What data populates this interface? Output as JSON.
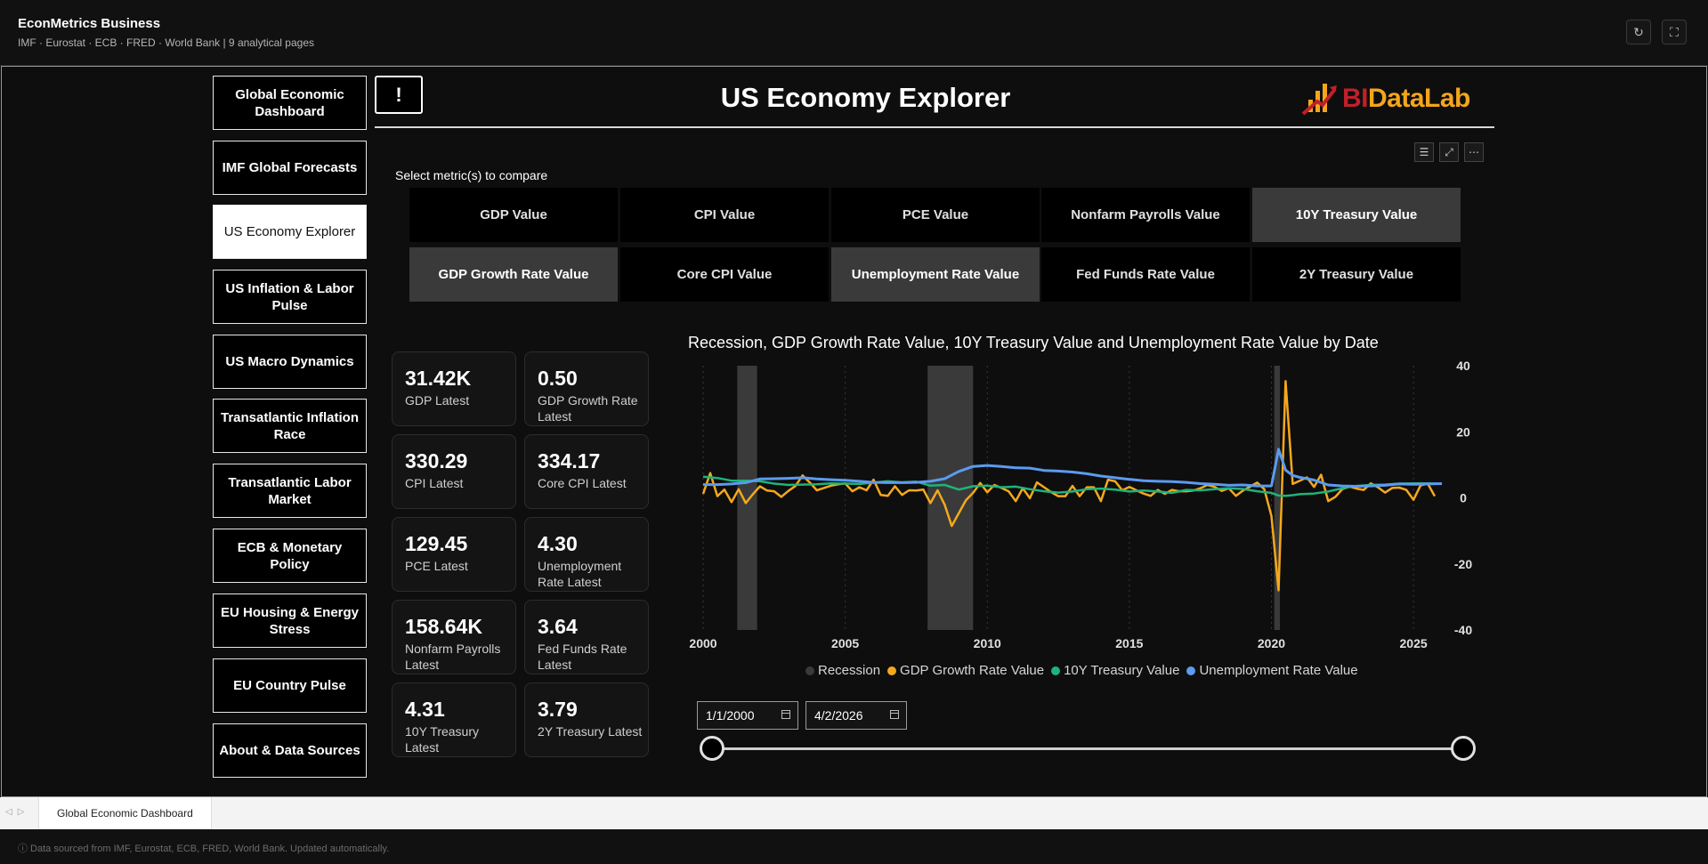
{
  "app": {
    "title": "EconMetrics Business",
    "subtitle": "IMF · Eurostat · ECB · FRED · World Bank  |  9 analytical pages",
    "refresh_icon": "refresh-icon",
    "fullscreen_icon": "fullscreen-icon"
  },
  "nav": {
    "items": [
      {
        "label": "Global Economic Dashboard"
      },
      {
        "label": "IMF Global Forecasts"
      },
      {
        "label": "US Economy Explorer",
        "active": true
      },
      {
        "label": "US Inflation & Labor Pulse"
      },
      {
        "label": "US Macro Dynamics"
      },
      {
        "label": "Transatlantic Inflation Race"
      },
      {
        "label": "Transatlantic Labor Market"
      },
      {
        "label": "ECB & Monetary Policy"
      },
      {
        "label": "EU Housing & Energy Stress"
      },
      {
        "label": "EU Country Pulse"
      },
      {
        "label": "About & Data Sources"
      }
    ]
  },
  "header": {
    "info_button": "!",
    "title": "US Economy Explorer",
    "logo": {
      "part1": "BI",
      "part2": "DataLab",
      "colors": {
        "bi": "#c0202a",
        "datalab": "#f4a51c"
      }
    }
  },
  "slicer": {
    "label": "Select metric(s) to compare",
    "buttons": [
      {
        "label": "GDP Value",
        "selected": false
      },
      {
        "label": "CPI Value",
        "selected": false
      },
      {
        "label": "PCE Value",
        "selected": false
      },
      {
        "label": "Nonfarm Payrolls Value",
        "selected": false
      },
      {
        "label": "10Y Treasury Value",
        "selected": true
      },
      {
        "label": "GDP Growth Rate Value",
        "selected": true
      },
      {
        "label": "Core CPI Value",
        "selected": false
      },
      {
        "label": "Unemployment Rate Value",
        "selected": true
      },
      {
        "label": "Fed Funds Rate Value",
        "selected": false
      },
      {
        "label": "2Y Treasury Value",
        "selected": false
      }
    ]
  },
  "kpis": [
    {
      "value": "31.42K",
      "label": "GDP Latest"
    },
    {
      "value": "0.50",
      "label": "GDP Growth Rate Latest"
    },
    {
      "value": "330.29",
      "label": "CPI Latest"
    },
    {
      "value": "334.17",
      "label": "Core CPI Latest"
    },
    {
      "value": "129.45",
      "label": "PCE Latest"
    },
    {
      "value": "4.30",
      "label": "Unemployment Rate Latest"
    },
    {
      "value": "158.64K",
      "label": "Nonfarm Payrolls Latest"
    },
    {
      "value": "3.64",
      "label": "Fed Funds Rate Latest"
    },
    {
      "value": "4.31",
      "label": "10Y Treasury Latest"
    },
    {
      "value": "3.79",
      "label": "2Y Treasury Latest"
    }
  ],
  "chart_data": {
    "type": "line",
    "title": "Recession, GDP Growth Rate Value, 10Y Treasury Value and Unemployment Rate Value by Date",
    "xlabel": "",
    "ylabel": "",
    "x_ticks": [
      "2000",
      "2005",
      "2010",
      "2015",
      "2020",
      "2025"
    ],
    "y_ticks": [
      "40",
      "20",
      "0",
      "-20",
      "-40"
    ],
    "xlim": [
      2000,
      2026.25
    ],
    "ylim": [
      -40,
      40
    ],
    "y_axis_side": "right",
    "grid": {
      "vertical": true,
      "horizontal": false
    },
    "legend_position": "bottom",
    "recession_periods": [
      [
        2001.2,
        2001.9
      ],
      [
        2007.9,
        2009.5
      ],
      [
        2020.1,
        2020.3
      ]
    ],
    "series": [
      {
        "name": "Recession",
        "color": "#3a3a3a"
      },
      {
        "name": "GDP Growth Rate Value",
        "color": "#f5a81c",
        "points": [
          [
            2000.0,
            1.2
          ],
          [
            2000.25,
            7.5
          ],
          [
            2000.5,
            0.5
          ],
          [
            2000.75,
            2.5
          ],
          [
            2001.0,
            -1.3
          ],
          [
            2001.25,
            2.6
          ],
          [
            2001.5,
            -1.6
          ],
          [
            2001.75,
            1.1
          ],
          [
            2002.0,
            3.5
          ],
          [
            2002.25,
            2.2
          ],
          [
            2002.5,
            2.0
          ],
          [
            2002.75,
            0.3
          ],
          [
            2003.0,
            2.1
          ],
          [
            2003.25,
            3.6
          ],
          [
            2003.5,
            6.8
          ],
          [
            2003.75,
            4.7
          ],
          [
            2004.0,
            2.3
          ],
          [
            2004.25,
            3.0
          ],
          [
            2004.5,
            3.7
          ],
          [
            2004.75,
            4.1
          ],
          [
            2005.0,
            4.4
          ],
          [
            2005.25,
            2.0
          ],
          [
            2005.5,
            3.2
          ],
          [
            2005.75,
            2.3
          ],
          [
            2006.0,
            5.5
          ],
          [
            2006.25,
            0.9
          ],
          [
            2006.5,
            0.6
          ],
          [
            2006.75,
            3.5
          ],
          [
            2007.0,
            0.9
          ],
          [
            2007.25,
            2.3
          ],
          [
            2007.5,
            2.2
          ],
          [
            2007.75,
            2.5
          ],
          [
            2008.0,
            -1.6
          ],
          [
            2008.25,
            2.3
          ],
          [
            2008.5,
            -2.1
          ],
          [
            2008.75,
            -8.5
          ],
          [
            2009.0,
            -4.6
          ],
          [
            2009.25,
            -0.7
          ],
          [
            2009.5,
            1.5
          ],
          [
            2009.75,
            4.5
          ],
          [
            2010.0,
            1.7
          ],
          [
            2010.25,
            3.9
          ],
          [
            2010.5,
            3.0
          ],
          [
            2010.75,
            2.0
          ],
          [
            2011.0,
            -1.0
          ],
          [
            2011.25,
            2.9
          ],
          [
            2011.5,
            -0.1
          ],
          [
            2011.75,
            4.7
          ],
          [
            2012.0,
            3.2
          ],
          [
            2012.25,
            1.7
          ],
          [
            2012.5,
            0.5
          ],
          [
            2012.75,
            0.5
          ],
          [
            2013.0,
            3.6
          ],
          [
            2013.25,
            0.5
          ],
          [
            2013.5,
            3.2
          ],
          [
            2013.75,
            3.2
          ],
          [
            2014.0,
            -1.0
          ],
          [
            2014.25,
            5.5
          ],
          [
            2014.5,
            5.0
          ],
          [
            2014.75,
            2.3
          ],
          [
            2015.0,
            3.3
          ],
          [
            2015.25,
            2.3
          ],
          [
            2015.5,
            1.3
          ],
          [
            2015.75,
            0.6
          ],
          [
            2016.0,
            2.4
          ],
          [
            2016.25,
            1.2
          ],
          [
            2016.5,
            2.4
          ],
          [
            2016.75,
            2.0
          ],
          [
            2017.0,
            2.0
          ],
          [
            2017.25,
            2.2
          ],
          [
            2017.5,
            2.9
          ],
          [
            2017.75,
            3.9
          ],
          [
            2018.0,
            3.3
          ],
          [
            2018.25,
            2.1
          ],
          [
            2018.5,
            2.9
          ],
          [
            2018.75,
            0.6
          ],
          [
            2019.0,
            2.2
          ],
          [
            2019.25,
            3.4
          ],
          [
            2019.5,
            4.6
          ],
          [
            2019.75,
            2.6
          ],
          [
            2020.0,
            -5.5
          ],
          [
            2020.25,
            -28.0
          ],
          [
            2020.5,
            35.3
          ],
          [
            2020.75,
            4.2
          ],
          [
            2021.0,
            5.2
          ],
          [
            2021.25,
            6.2
          ],
          [
            2021.5,
            3.3
          ],
          [
            2021.75,
            7.0
          ],
          [
            2022.0,
            -1.0
          ],
          [
            2022.25,
            0.3
          ],
          [
            2022.5,
            2.7
          ],
          [
            2022.75,
            3.4
          ],
          [
            2023.0,
            2.8
          ],
          [
            2023.25,
            2.4
          ],
          [
            2023.5,
            4.4
          ],
          [
            2023.75,
            3.2
          ],
          [
            2024.0,
            1.6
          ],
          [
            2024.25,
            3.0
          ],
          [
            2024.5,
            3.1
          ],
          [
            2024.75,
            2.4
          ],
          [
            2025.0,
            -0.6
          ],
          [
            2025.25,
            3.8
          ],
          [
            2025.5,
            4.3
          ],
          [
            2025.75,
            0.5
          ]
        ]
      },
      {
        "name": "10Y Treasury Value",
        "color": "#1fb37a",
        "points": [
          [
            2000.0,
            6.4
          ],
          [
            2000.5,
            6.0
          ],
          [
            2001.0,
            5.2
          ],
          [
            2001.5,
            5.2
          ],
          [
            2002.0,
            5.0
          ],
          [
            2002.5,
            4.3
          ],
          [
            2003.0,
            3.9
          ],
          [
            2003.5,
            4.0
          ],
          [
            2004.0,
            4.1
          ],
          [
            2004.5,
            4.4
          ],
          [
            2005.0,
            4.3
          ],
          [
            2005.5,
            4.2
          ],
          [
            2006.0,
            4.6
          ],
          [
            2006.5,
            5.0
          ],
          [
            2007.0,
            4.7
          ],
          [
            2007.5,
            4.9
          ],
          [
            2008.0,
            3.7
          ],
          [
            2008.5,
            3.9
          ],
          [
            2009.0,
            2.5
          ],
          [
            2009.5,
            3.5
          ],
          [
            2010.0,
            3.7
          ],
          [
            2010.5,
            3.2
          ],
          [
            2011.0,
            3.4
          ],
          [
            2011.5,
            2.6
          ],
          [
            2012.0,
            2.0
          ],
          [
            2012.5,
            1.6
          ],
          [
            2013.0,
            1.9
          ],
          [
            2013.5,
            2.6
          ],
          [
            2014.0,
            2.8
          ],
          [
            2014.5,
            2.5
          ],
          [
            2015.0,
            1.9
          ],
          [
            2015.5,
            2.2
          ],
          [
            2016.0,
            1.9
          ],
          [
            2016.5,
            1.5
          ],
          [
            2017.0,
            2.4
          ],
          [
            2017.5,
            2.3
          ],
          [
            2018.0,
            2.6
          ],
          [
            2018.5,
            2.9
          ],
          [
            2019.0,
            2.7
          ],
          [
            2019.5,
            2.0
          ],
          [
            2020.0,
            1.5
          ],
          [
            2020.25,
            0.7
          ],
          [
            2020.5,
            0.6
          ],
          [
            2020.75,
            0.8
          ],
          [
            2021.0,
            1.1
          ],
          [
            2021.5,
            1.3
          ],
          [
            2022.0,
            1.9
          ],
          [
            2022.5,
            2.9
          ],
          [
            2023.0,
            3.6
          ],
          [
            2023.5,
            3.9
          ],
          [
            2024.0,
            4.0
          ],
          [
            2024.5,
            4.3
          ],
          [
            2025.0,
            4.4
          ],
          [
            2025.5,
            4.4
          ],
          [
            2026.0,
            4.2
          ]
        ]
      },
      {
        "name": "Unemployment Rate Value",
        "color": "#5b9bf0",
        "points": [
          [
            2000.0,
            4.0
          ],
          [
            2000.5,
            4.0
          ],
          [
            2001.0,
            4.2
          ],
          [
            2001.5,
            4.6
          ],
          [
            2002.0,
            5.7
          ],
          [
            2002.5,
            5.8
          ],
          [
            2003.0,
            5.9
          ],
          [
            2003.5,
            6.1
          ],
          [
            2004.0,
            5.7
          ],
          [
            2004.5,
            5.5
          ],
          [
            2005.0,
            5.3
          ],
          [
            2005.5,
            5.0
          ],
          [
            2006.0,
            4.7
          ],
          [
            2006.5,
            4.6
          ],
          [
            2007.0,
            4.6
          ],
          [
            2007.5,
            4.7
          ],
          [
            2008.0,
            5.0
          ],
          [
            2008.5,
            5.8
          ],
          [
            2009.0,
            8.0
          ],
          [
            2009.5,
            9.5
          ],
          [
            2010.0,
            9.8
          ],
          [
            2010.5,
            9.5
          ],
          [
            2011.0,
            9.1
          ],
          [
            2011.5,
            9.0
          ],
          [
            2012.0,
            8.3
          ],
          [
            2012.5,
            8.1
          ],
          [
            2013.0,
            7.8
          ],
          [
            2013.5,
            7.3
          ],
          [
            2014.0,
            6.6
          ],
          [
            2014.5,
            6.1
          ],
          [
            2015.0,
            5.6
          ],
          [
            2015.5,
            5.2
          ],
          [
            2016.0,
            5.0
          ],
          [
            2016.5,
            4.9
          ],
          [
            2017.0,
            4.7
          ],
          [
            2017.5,
            4.3
          ],
          [
            2018.0,
            4.1
          ],
          [
            2018.5,
            3.8
          ],
          [
            2019.0,
            3.9
          ],
          [
            2019.5,
            3.6
          ],
          [
            2020.0,
            3.6
          ],
          [
            2020.25,
            14.7
          ],
          [
            2020.5,
            8.4
          ],
          [
            2020.75,
            6.8
          ],
          [
            2021.0,
            6.2
          ],
          [
            2021.5,
            5.4
          ],
          [
            2022.0,
            3.9
          ],
          [
            2022.5,
            3.6
          ],
          [
            2023.0,
            3.5
          ],
          [
            2023.5,
            3.6
          ],
          [
            2024.0,
            3.8
          ],
          [
            2024.5,
            4.2
          ],
          [
            2025.0,
            4.1
          ],
          [
            2025.5,
            4.2
          ],
          [
            2026.0,
            4.3
          ]
        ]
      }
    ]
  },
  "date_range": {
    "start": "1/1/2000",
    "end": "4/2/2026",
    "calendar_icon": "calendar-icon"
  },
  "tabs": [
    {
      "label": "Global Economic Dashboard"
    }
  ],
  "footer": {
    "text": "ⓘ  Data sourced from IMF, Eurostat, ECB, FRED, World Bank. Updated automatically."
  }
}
